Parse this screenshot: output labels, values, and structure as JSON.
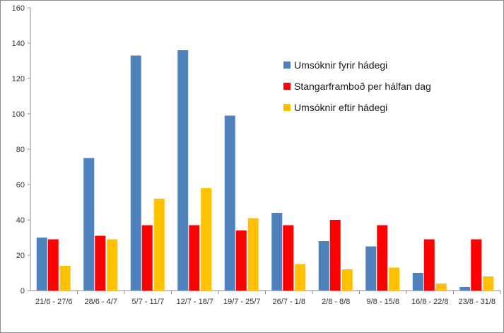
{
  "chart_data": {
    "type": "bar",
    "title": "",
    "xlabel": "",
    "ylabel": "",
    "ylim": [
      0,
      160
    ],
    "yticks": [
      0,
      20,
      40,
      60,
      80,
      100,
      120,
      140,
      160
    ],
    "grid": false,
    "legend_position": "right",
    "categories": [
      "21/6 - 27/6",
      "28/6 - 4/7",
      "5/7 - 11/7",
      "12/7 - 18/7",
      "19/7 - 25/7",
      "26/7 - 1/8",
      "2/8 - 8/8",
      "9/8 - 15/8",
      "16/8 - 22/8",
      "23/8 - 31/8"
    ],
    "series": [
      {
        "name": "Umsóknir fyrir hádegi",
        "color": "#4f81bd",
        "values": [
          30,
          75,
          133,
          136,
          99,
          44,
          28,
          25,
          10,
          2
        ]
      },
      {
        "name": "Stangarframboð per hálfan dag",
        "color": "#ff0000",
        "values": [
          29,
          31,
          37,
          37,
          34,
          37,
          40,
          37,
          29,
          29
        ]
      },
      {
        "name": "Umsóknir eftir hádegi",
        "color": "#ffc000",
        "values": [
          14,
          29,
          52,
          58,
          41,
          15,
          12,
          13,
          4,
          8
        ]
      }
    ]
  }
}
